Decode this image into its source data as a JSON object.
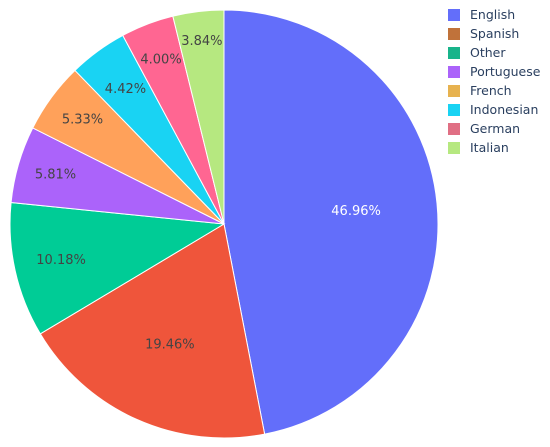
{
  "chart_data": {
    "type": "pie",
    "categories": [
      "English",
      "Spanish",
      "Other",
      "Portuguese",
      "French",
      "Indonesian",
      "German",
      "Italian"
    ],
    "values": [
      46.96,
      19.46,
      10.18,
      5.81,
      5.33,
      4.42,
      4.0,
      3.84
    ],
    "labels": [
      "46.96%",
      "19.46%",
      "10.18%",
      "5.81%",
      "5.33%",
      "4.42%",
      "4.00%",
      "3.84%"
    ],
    "colors": [
      "#636efa",
      "#ef553b",
      "#00cc96",
      "#ab63fa",
      "#ffa15a",
      "#19d3f3",
      "#ff6692",
      "#b6e880"
    ],
    "legend_colors": [
      "#636efa",
      "#c0723a",
      "#18b48a",
      "#ab63fa",
      "#e7b24f",
      "#19d3f3",
      "#e06f84",
      "#b6e880"
    ],
    "legend_position": "top-right",
    "title": ""
  }
}
